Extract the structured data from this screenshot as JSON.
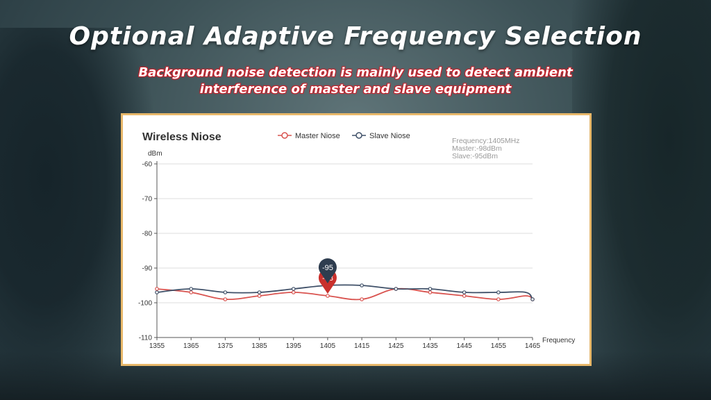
{
  "slide": {
    "title": "Optional Adaptive Frequency Selection",
    "subtitle_line1": "Background noise detection is mainly used to detect ambient",
    "subtitle_line2": "interference of master and slave equipment"
  },
  "chart_data": {
    "type": "line",
    "title": "Wireless Niose",
    "ylabel": "dBm",
    "xlabel": "Frequency",
    "ylim": [
      -110,
      -60
    ],
    "yticks": [
      -60,
      -70,
      -80,
      -90,
      -100,
      -110
    ],
    "x": [
      1355,
      1365,
      1375,
      1385,
      1395,
      1405,
      1415,
      1425,
      1435,
      1445,
      1455,
      1465
    ],
    "grid": true,
    "legend_position": "top",
    "series": [
      {
        "name": "Master Niose",
        "color": "#d9534f",
        "points": [
          [
            1355,
            -96
          ],
          [
            1365,
            -97
          ],
          [
            1375,
            -99
          ],
          [
            1385,
            -98
          ],
          [
            1395,
            -97
          ],
          [
            1405,
            -98
          ],
          [
            1415,
            -99
          ],
          [
            1425,
            -96
          ],
          [
            1435,
            -97
          ],
          [
            1445,
            -98
          ],
          [
            1455,
            -99
          ],
          [
            1463,
            -98
          ],
          [
            1465,
            -99
          ]
        ]
      },
      {
        "name": "Slave Niose",
        "color": "#3f5068",
        "points": [
          [
            1355,
            -97
          ],
          [
            1365,
            -96
          ],
          [
            1375,
            -97
          ],
          [
            1385,
            -97
          ],
          [
            1395,
            -96
          ],
          [
            1405,
            -95
          ],
          [
            1415,
            -95
          ],
          [
            1425,
            -96
          ],
          [
            1435,
            -96
          ],
          [
            1445,
            -97
          ],
          [
            1455,
            -97
          ],
          [
            1463,
            -97
          ],
          [
            1465,
            -99
          ]
        ]
      }
    ],
    "tooltip": {
      "line1": "Frequency:1405MHz",
      "line2": "Master:-98dBm",
      "line3": "Slave:-95dBm"
    },
    "markers": [
      {
        "series": "Master Niose",
        "x": 1405,
        "y": -98,
        "label": "-98",
        "color": "#c9302c"
      },
      {
        "series": "Slave Niose",
        "x": 1405,
        "y": -95,
        "label": "-95",
        "color": "#2e3d4f"
      }
    ]
  }
}
